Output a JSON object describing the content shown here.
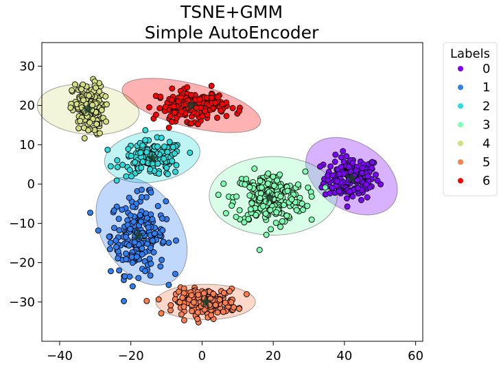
{
  "chart_data": {
    "type": "scatter",
    "title": "TSNE+GMM",
    "subtitle": "Simple AutoEncoder",
    "xlabel": "",
    "ylabel": "",
    "xlim": [
      -45,
      62
    ],
    "ylim": [
      -40,
      36
    ],
    "x_ticks": [
      -40,
      -20,
      0,
      20,
      40,
      60
    ],
    "y_ticks": [
      30,
      20,
      10,
      0,
      -10,
      -20,
      -30
    ],
    "x_tick_labels": [
      "−40",
      "−20",
      "0",
      "20",
      "40",
      "60"
    ],
    "y_tick_labels": [
      "30",
      "20",
      "10",
      "0",
      "−10",
      "−20",
      "−30"
    ],
    "grid": false,
    "legend": {
      "title": "Labels",
      "placement": "outside-right",
      "entries": [
        "0",
        "1",
        "2",
        "3",
        "4",
        "5",
        "6"
      ]
    },
    "series": [
      {
        "name": "0",
        "color": "#7f00ff",
        "center": [
          42,
          1.5
        ],
        "spread": [
          7,
          5
        ],
        "count": 160,
        "ellipse": {
          "center": [
            42,
            2
          ],
          "width": 28,
          "height": 17,
          "angle": -32
        }
      },
      {
        "name": "1",
        "color": "#2e7ff1",
        "center": [
          -18,
          -13
        ],
        "spread": [
          7,
          9
        ],
        "count": 200,
        "ellipse": {
          "center": [
            -17,
            -12
          ],
          "width": 33,
          "height": 20,
          "angle": -58
        }
      },
      {
        "name": "2",
        "color": "#2adcdc",
        "center": [
          -14,
          6.5
        ],
        "spread": [
          8,
          4
        ],
        "count": 150,
        "ellipse": {
          "center": [
            -14,
            7
          ],
          "width": 27,
          "height": 13,
          "angle": 8
        }
      },
      {
        "name": "3",
        "color": "#80ffb4",
        "center": [
          19,
          -3.5
        ],
        "spread": [
          9,
          6
        ],
        "count": 230,
        "ellipse": {
          "center": [
            20,
            -3
          ],
          "width": 36,
          "height": 20,
          "angle": 0
        }
      },
      {
        "name": "4",
        "color": "#d4dd80",
        "center": [
          -32,
          19
        ],
        "spread": [
          4,
          6
        ],
        "count": 170,
        "ellipse": {
          "center": [
            -32,
            19
          ],
          "width": 14,
          "height": 26,
          "angle": 85
        }
      },
      {
        "name": "5",
        "color": "#ff7f4e",
        "center": [
          1,
          -30
        ],
        "spread": [
          8,
          3
        ],
        "count": 170,
        "ellipse": {
          "center": [
            1,
            -30
          ],
          "width": 28,
          "height": 9,
          "angle": 0
        }
      },
      {
        "name": "6",
        "color": "#ff0000",
        "center": [
          -3,
          20
        ],
        "spread": [
          9,
          3.5
        ],
        "count": 170,
        "ellipse": {
          "center": [
            -3,
            20
          ],
          "width": 40,
          "height": 11,
          "angle": -14
        }
      }
    ]
  }
}
